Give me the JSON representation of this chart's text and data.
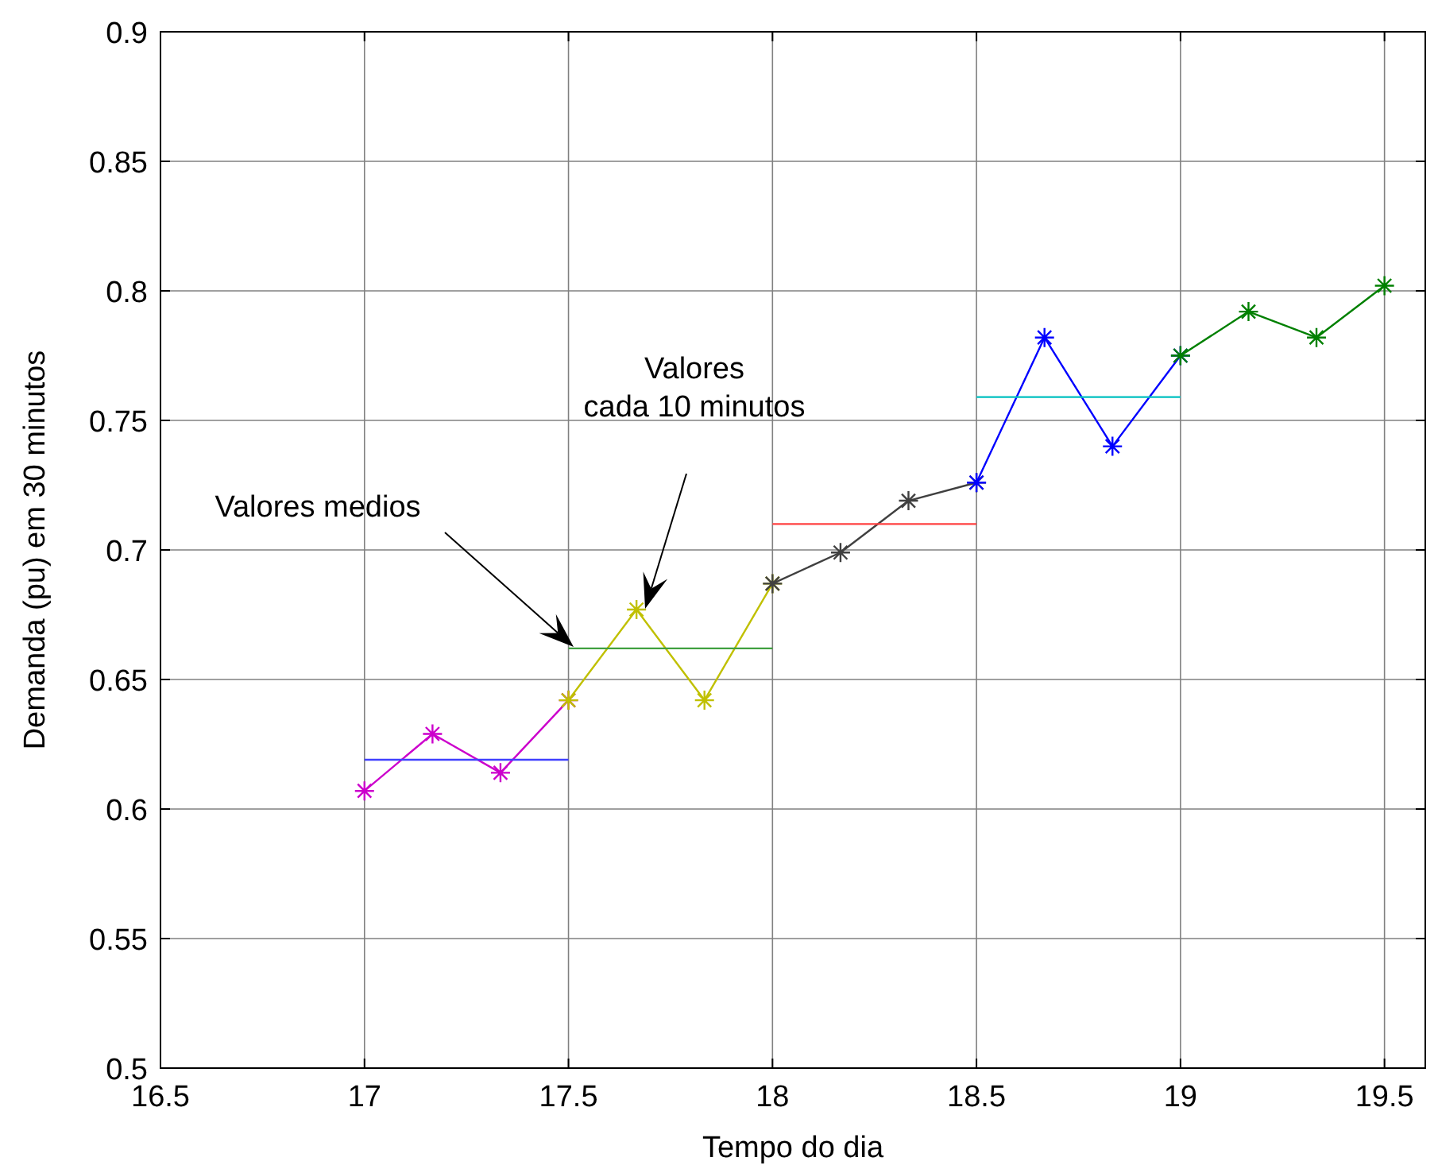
{
  "chart_data": {
    "type": "line",
    "xlabel": "Tempo do dia",
    "ylabel": "Demanda (pu) em 30 minutos",
    "xlim": [
      16.5,
      19.6
    ],
    "ylim": [
      0.5,
      0.9
    ],
    "xticks": [
      16.5,
      17,
      17.5,
      18,
      18.5,
      19,
      19.5
    ],
    "yticks": [
      0.5,
      0.55,
      0.6,
      0.65,
      0.7,
      0.75,
      0.8,
      0.85,
      0.9
    ],
    "grid": true,
    "series": [
      {
        "x": [
          17,
          17.1667,
          17.3333,
          17.5
        ],
        "values": [
          0.607,
          0.629,
          0.614,
          0.642
        ],
        "color": "#cc00cc",
        "marker": "cross"
      },
      {
        "x": [
          17.5,
          17.6667,
          17.8333,
          18
        ],
        "values": [
          0.642,
          0.677,
          0.642,
          0.687
        ],
        "color": "#c0c000",
        "marker": "cross"
      },
      {
        "x": [
          18,
          18.1667,
          18.3333,
          18.5
        ],
        "values": [
          0.687,
          0.699,
          0.719,
          0.726
        ],
        "color": "#404040",
        "marker": "cross"
      },
      {
        "x": [
          18.5,
          18.6667,
          18.8333,
          19
        ],
        "values": [
          0.726,
          0.782,
          0.74,
          0.775
        ],
        "color": "#0000ff",
        "marker": "cross"
      },
      {
        "x": [
          19,
          19.1667,
          19.3333,
          19.5
        ],
        "values": [
          0.775,
          0.792,
          0.782,
          0.802
        ],
        "color": "#008000",
        "marker": "cross"
      },
      {
        "x": [
          17,
          17.5
        ],
        "values": [
          0.619,
          0.619
        ],
        "color": "#4040ff",
        "marker": "none"
      },
      {
        "x": [
          17.5,
          18
        ],
        "values": [
          0.662,
          0.662
        ],
        "color": "#40a040",
        "marker": "none"
      },
      {
        "x": [
          18,
          18.5
        ],
        "values": [
          0.71,
          0.71
        ],
        "color": "#ff4040",
        "marker": "none"
      },
      {
        "x": [
          18.5,
          19
        ],
        "values": [
          0.759,
          0.759
        ],
        "color": "#00c0c0",
        "marker": "none"
      }
    ],
    "annotations": [
      "Valores medios",
      "Valores\ncada 10 minutos"
    ]
  }
}
